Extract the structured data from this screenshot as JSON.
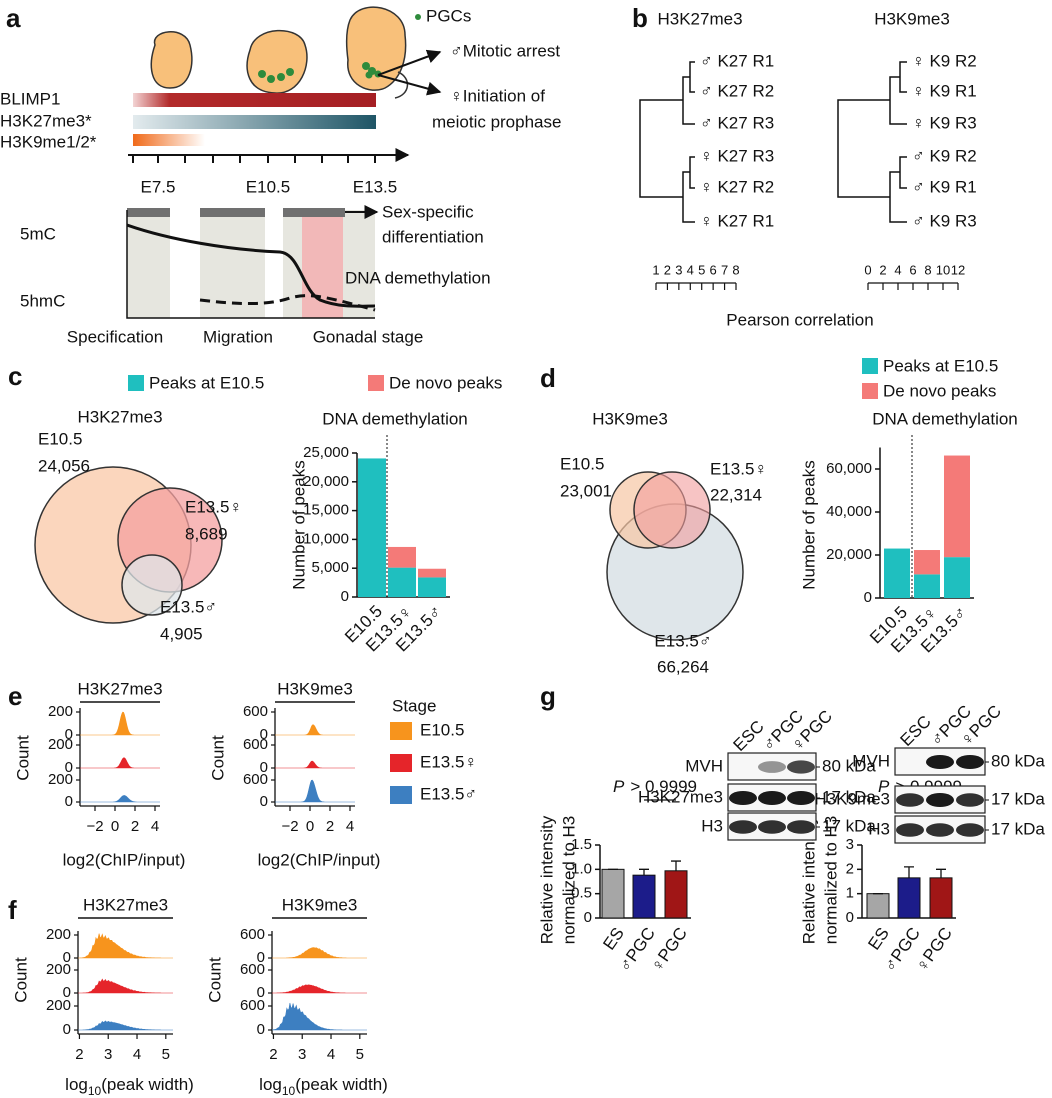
{
  "a": {
    "label": "a",
    "legend": "PGCs",
    "tracks": [
      "BLIMP1",
      "H3K27me3*",
      "H3K9me1/2*"
    ],
    "outcomes": [
      "♂Mitotic arrest",
      "♀Initiation of",
      "meiotic prophase"
    ],
    "times": [
      "E7.5",
      "E10.5",
      "E13.5"
    ],
    "marks": [
      "5mC",
      "5hmC"
    ],
    "annotations": [
      "Sex-specific",
      "differentiation",
      "DNA demethylation"
    ],
    "phases": [
      "Specification",
      "Migration",
      "Gonadal stage"
    ]
  },
  "b": {
    "label": "b",
    "xlabel": "Pearson correlation",
    "trees": [
      {
        "title": "H3K27me3",
        "leaves": [
          "♂ K27 R1",
          "♂ K27 R2",
          "♂ K27 R3",
          "♀ K27 R3",
          "♀ K27 R2",
          "♀ K27 R1"
        ],
        "leaf_colors": [
          "#3a4fa3",
          "#3a4fa3",
          "#3a4fa3",
          "#e3343a",
          "#e3343a",
          "#e3343a"
        ],
        "xlim": [
          1,
          8
        ],
        "ticks": [
          1,
          2,
          3,
          4,
          5,
          6,
          7,
          8
        ]
      },
      {
        "title": "H3K9me3",
        "leaves": [
          "♀ K9 R2",
          "♀ K9 R1",
          "♀ K9 R3",
          "♂ K9 R2",
          "♂ K9 R1",
          "♂ K9 R3"
        ],
        "leaf_colors": [
          "#e3343a",
          "#e3343a",
          "#e3343a",
          "#3a4fa3",
          "#3a4fa3",
          "#3a4fa3"
        ],
        "xlim": [
          0,
          12
        ],
        "ticks": [
          0,
          2,
          4,
          6,
          8,
          10,
          12
        ]
      }
    ]
  },
  "c": {
    "label": "c",
    "venn": {
      "title": "H3K27me3",
      "sets": [
        {
          "name": "E10.5",
          "count": "24,056"
        },
        {
          "name": "E13.5♀",
          "count": "8,689"
        },
        {
          "name": "E13.5♂",
          "count": "4,905"
        }
      ]
    }
  },
  "d": {
    "label": "d",
    "venn": {
      "title": "H3K9me3",
      "sets": [
        {
          "name": "E10.5",
          "count": "23,001"
        },
        {
          "name": "E13.5♀",
          "count": "22,314"
        },
        {
          "name": "E13.5♂",
          "count": "66,264"
        }
      ]
    }
  },
  "e": {
    "label": "e",
    "legend_title": "Stage",
    "legend": [
      {
        "name": "E10.5",
        "color": "#f7941d"
      },
      {
        "name": "E13.5♀",
        "color": "#e5252a"
      },
      {
        "name": "E13.5♂",
        "color": "#3d7fc1"
      }
    ],
    "ylabel": "Count",
    "xlabel": "log2(ChIP/input)",
    "panels": [
      {
        "title": "H3K27me3",
        "xlim": [
          -3.5,
          4.5
        ],
        "xticks": [
          {
            "value": -2,
            "label": "−2"
          },
          0,
          2,
          4
        ],
        "rows": [
          {
            "ylim": [
              0,
              200
            ],
            "yticks": [
              0,
              200
            ]
          },
          {
            "ylim": [
              0,
              200
            ],
            "yticks": [
              0,
              200
            ]
          },
          {
            "ylim": [
              0,
              200
            ],
            "yticks": [
              0,
              200
            ]
          }
        ]
      },
      {
        "title": "H3K9me3",
        "xlim": [
          -3.5,
          4.5
        ],
        "xticks": [
          {
            "value": -2,
            "label": "−2"
          },
          0,
          2,
          4
        ],
        "rows": [
          {
            "ylim": [
              0,
              600
            ],
            "yticks": [
              0,
              600
            ]
          },
          {
            "ylim": [
              0,
              600
            ],
            "yticks": [
              0,
              600
            ]
          },
          {
            "ylim": [
              0,
              600
            ],
            "yticks": [
              0,
              600
            ]
          }
        ]
      }
    ]
  },
  "f": {
    "label": "f",
    "ylabel": "Count",
    "xlabel": {
      "base": "log",
      "sub": "10",
      "rest": "(peak width)"
    },
    "panels": [
      {
        "title": "H3K27me3",
        "xlim": [
          1.95,
          5.25
        ],
        "xticks": [
          2,
          3,
          4,
          5
        ],
        "rows": [
          {
            "ylim": [
              0,
              200
            ],
            "yticks": [
              0,
              200
            ]
          },
          {
            "ylim": [
              0,
              200
            ],
            "yticks": [
              0,
              200
            ]
          },
          {
            "ylim": [
              0,
              200
            ],
            "yticks": [
              0,
              200
            ]
          }
        ]
      },
      {
        "title": "H3K9me3",
        "xlim": [
          1.95,
          5.25
        ],
        "xticks": [
          2,
          3,
          4,
          5
        ],
        "rows": [
          {
            "ylim": [
              0,
              600
            ],
            "yticks": [
              0,
              600
            ]
          },
          {
            "ylim": [
              0,
              600
            ],
            "yticks": [
              0,
              600
            ]
          },
          {
            "ylim": [
              0,
              600
            ],
            "yticks": [
              0,
              600
            ]
          }
        ]
      }
    ]
  },
  "g": {
    "label": "g",
    "blots": [
      {
        "lanes": [
          "ESC",
          "♂PGC",
          "♀PGC"
        ],
        "rows": [
          "MVH",
          "H3K27me3",
          "H3"
        ],
        "sizes": [
          "80 kDa",
          "17 kDa",
          "17 kDa"
        ]
      },
      {
        "lanes": [
          "ESC",
          "♂PGC",
          "♀PGC"
        ],
        "rows": [
          "MVH",
          "H3K9me3",
          "H3"
        ],
        "sizes": [
          "80 kDa",
          "17 kDa",
          "17 kDa"
        ]
      }
    ]
  },
  "chart_data": [
    {
      "type": "stacked_bar",
      "title": "DNA demethylation",
      "ylabel": "Number of peaks",
      "categories": [
        "E10.5",
        "E13.5♀",
        "E13.5♂"
      ],
      "series": [
        {
          "name": "Peaks at E10.5",
          "color": "#1fbfbf",
          "values": [
            24056,
            5100,
            3400
          ]
        },
        {
          "name": "De novo peaks",
          "color": "#f47a78",
          "values": [
            0,
            3589,
            1505
          ]
        }
      ],
      "ylim": [
        0,
        25000
      ],
      "yticks": [
        0,
        {
          "value": 5000,
          "label": "5,000"
        },
        {
          "value": 10000,
          "label": "10,000"
        },
        {
          "value": 15000,
          "label": "15,000"
        },
        {
          "value": 20000,
          "label": "20,000"
        },
        {
          "value": 25000,
          "label": "25,000"
        }
      ]
    },
    {
      "type": "stacked_bar",
      "title": "DNA demethylation",
      "ylabel": "Number of peaks",
      "categories": [
        "E10.5",
        "E13.5♀",
        "E13.5♂"
      ],
      "series": [
        {
          "name": "Peaks at E10.5",
          "color": "#1fbfbf",
          "values": [
            23001,
            11000,
            19000
          ]
        },
        {
          "name": "De novo peaks",
          "color": "#f47a78",
          "values": [
            0,
            11314,
            47264
          ]
        }
      ],
      "ylim": [
        0,
        70000
      ],
      "yticks": [
        0,
        {
          "value": 20000,
          "label": "20,000"
        },
        {
          "value": 40000,
          "label": "40,000"
        },
        {
          "value": 60000,
          "label": "60,000"
        }
      ]
    },
    {
      "type": "bar",
      "ylabel": [
        "Relative intensity",
        "normalized to H3"
      ],
      "categories": [
        "ES",
        "♂PGC",
        "♀PGC"
      ],
      "values": [
        1,
        0.88,
        0.97
      ],
      "errors": [
        0,
        0.12,
        0.2
      ],
      "colors": [
        "#a6a6a6",
        "#1c1c8a",
        "#a01616"
      ],
      "ylim": [
        0,
        1.5
      ],
      "yticks": [
        0,
        0.5,
        {
          "value": 1,
          "label": "1.0"
        },
        1.5
      ],
      "annotation": {
        "p": "P",
        "text": "> 0.9999"
      }
    },
    {
      "type": "bar",
      "ylabel": [
        "Relative intensity",
        "normalized to H3"
      ],
      "categories": [
        "ES",
        "♂PGC",
        "♀PGC"
      ],
      "values": [
        1,
        1.65,
        1.65
      ],
      "errors": [
        0,
        0.45,
        0.35
      ],
      "colors": [
        "#a6a6a6",
        "#1c1c8a",
        "#a01616"
      ],
      "ylim": [
        0,
        3
      ],
      "yticks": [
        0,
        1,
        2,
        3
      ],
      "annotation": {
        "p": "P",
        "text": "> 0.9999"
      }
    }
  ]
}
